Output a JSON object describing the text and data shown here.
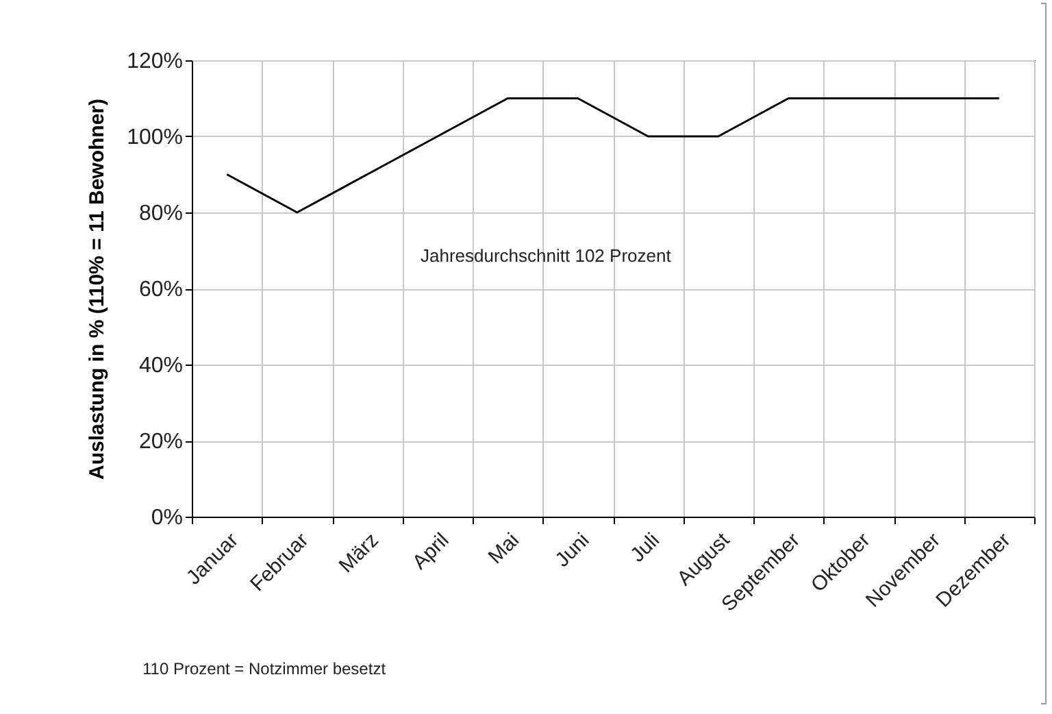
{
  "chart_data": {
    "type": "line",
    "ylabel": "Auslastung in % (110% = 11 Bewohner)",
    "categories": [
      "Januar",
      "Februar",
      "März",
      "April",
      "Mai",
      "Juni",
      "Juli",
      "August",
      "September",
      "Oktober",
      "November",
      "Dezember"
    ],
    "series": [
      {
        "color": "#000000",
        "values": [
          90,
          80,
          90,
          100,
          110,
          110,
          100,
          100,
          110,
          110,
          110,
          110
        ]
      }
    ],
    "ylim": [
      0,
      120
    ],
    "yticks": [
      {
        "value": 0,
        "label": "0%"
      },
      {
        "value": 20,
        "label": "20%"
      },
      {
        "value": 40,
        "label": "40%"
      },
      {
        "value": 60,
        "label": "60%"
      },
      {
        "value": 80,
        "label": "80%"
      },
      {
        "value": 100,
        "label": "100%"
      },
      {
        "value": 120,
        "label": "120%"
      }
    ],
    "grid": true,
    "marker": "none",
    "line_style": "solid",
    "annotations": [
      "Jahresdurchschnitt 102 Prozent",
      "110 Prozent = Notzimmer besetzt"
    ]
  }
}
